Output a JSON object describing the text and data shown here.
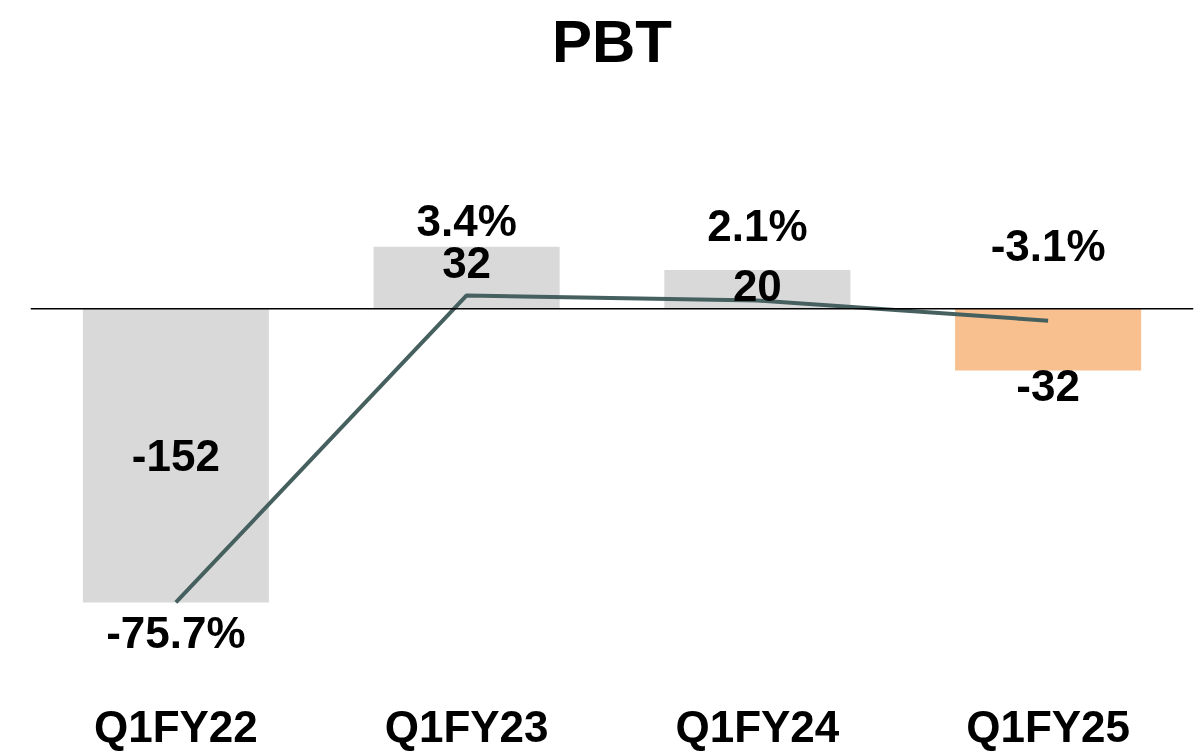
{
  "chart_data": {
    "type": "bar",
    "title": "PBT",
    "categories": [
      "Q1FY22",
      "Q1FY23",
      "Q1FY24",
      "Q1FY25"
    ],
    "series": [
      {
        "colors": [
          "#d9d9d9",
          "#d9d9d9",
          "#d9d9d9",
          "#f8c08f"
        ],
        "values": [
          -152,
          32,
          20,
          -32
        ]
      },
      {
        "type": "line",
        "axis": "y2",
        "color": "#46605f",
        "values": [
          -75.7,
          3.4,
          2.1,
          -3.1
        ],
        "value_labels": [
          "-75.7%",
          "3.4%",
          "2.1%",
          "-3.1%"
        ]
      }
    ],
    "data_labels": true,
    "tick_labels": "x"
  }
}
